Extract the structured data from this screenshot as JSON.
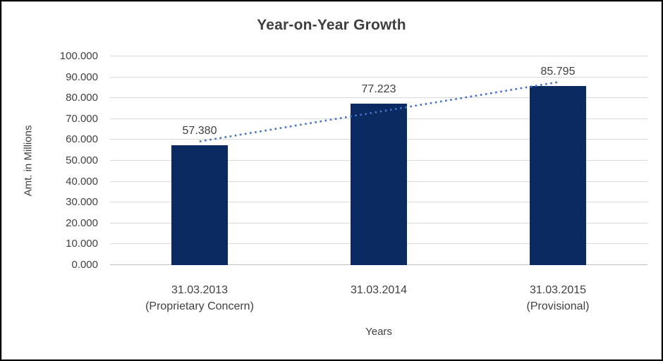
{
  "chart_data": {
    "type": "bar",
    "title": "Year-on-Year Growth",
    "xlabel": "Years",
    "ylabel": "Amt. in Millions",
    "categories": [
      {
        "line1": "31.03.2013",
        "line2": "(Proprietary Concern)"
      },
      {
        "line1": "31.03.2014",
        "line2": ""
      },
      {
        "line1": "31.03.2015",
        "line2": "(Provisional)"
      }
    ],
    "values": [
      57.38,
      77.223,
      85.795
    ],
    "value_labels": [
      "57.380",
      "77.223",
      "85.795"
    ],
    "ylim": [
      0,
      100
    ],
    "ytick_step": 10,
    "ytick_labels": [
      "0.000",
      "10.000",
      "20.000",
      "30.000",
      "40.000",
      "50.000",
      "60.000",
      "70.000",
      "80.000",
      "90.000",
      "100.000"
    ],
    "grid": true,
    "legend": "none",
    "trendline": {
      "fit": "linear",
      "style": "dotted",
      "color": "#4472c4"
    },
    "colors": {
      "bar": "#0c2a62",
      "gridline": "#d9d9d9",
      "axis_line": "#bfbfbf",
      "text": "#404040",
      "title": "#3f3f3f",
      "chart_border": "#d3d3d3",
      "outer_frame": "#000000",
      "background": "#ffffff"
    }
  }
}
